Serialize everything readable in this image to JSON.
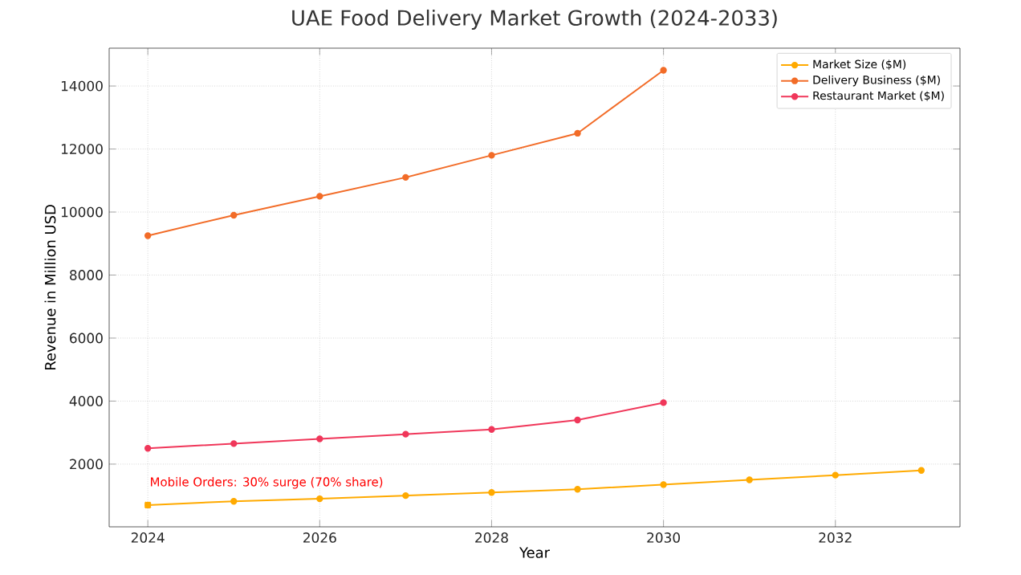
{
  "chart_data": {
    "type": "line",
    "title": "UAE Food Delivery Market Growth (2024-2033)",
    "xlabel": "Year",
    "ylabel": "Revenue in Million USD",
    "series": [
      {
        "name": "Market Size ($M)",
        "color": "#ffaa00",
        "x": [
          2024,
          2025,
          2026,
          2027,
          2028,
          2029,
          2030,
          2031,
          2032,
          2033
        ],
        "values": [
          700,
          820,
          900,
          1000,
          1100,
          1200,
          1350,
          1500,
          1650,
          1800
        ]
      },
      {
        "name": "Delivery Business ($M)",
        "color": "#f26c28",
        "x": [
          2024,
          2025,
          2026,
          2027,
          2028,
          2029,
          2030
        ],
        "values": [
          9250,
          9900,
          10500,
          11100,
          11800,
          12500,
          14500
        ]
      },
      {
        "name": "Restaurant Market ($M)",
        "color": "#f0375a",
        "x": [
          2024,
          2025,
          2026,
          2027,
          2028,
          2029,
          2030
        ],
        "values": [
          2500,
          2650,
          2800,
          2950,
          3100,
          3400,
          3950
        ]
      }
    ],
    "annotations": [
      {
        "text": "Mobile Orders: 30% surge (70% share)",
        "x": 2024,
        "y": 700
      }
    ],
    "xlim": [
      2023.55,
      2033.45
    ],
    "ylim": [
      10,
      15200
    ],
    "xticks": [
      2024,
      2026,
      2028,
      2030,
      2032
    ],
    "yticks": [
      2000,
      4000,
      6000,
      8000,
      10000,
      12000,
      14000
    ],
    "grid": true,
    "legend": "top right",
    "marker": "circle",
    "line_style": "solid"
  }
}
